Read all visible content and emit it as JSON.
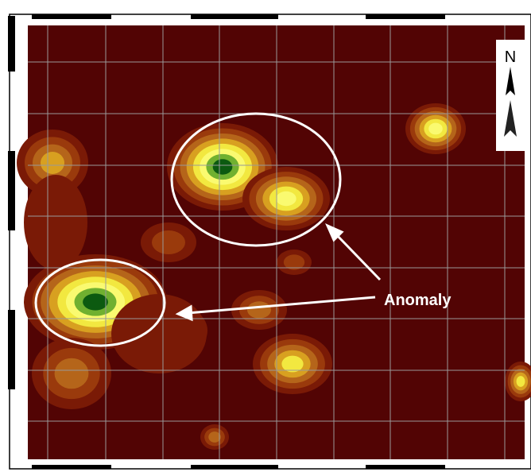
{
  "annotation": {
    "label": "Anomaly"
  },
  "north_arrow": {
    "label": "N"
  }
}
